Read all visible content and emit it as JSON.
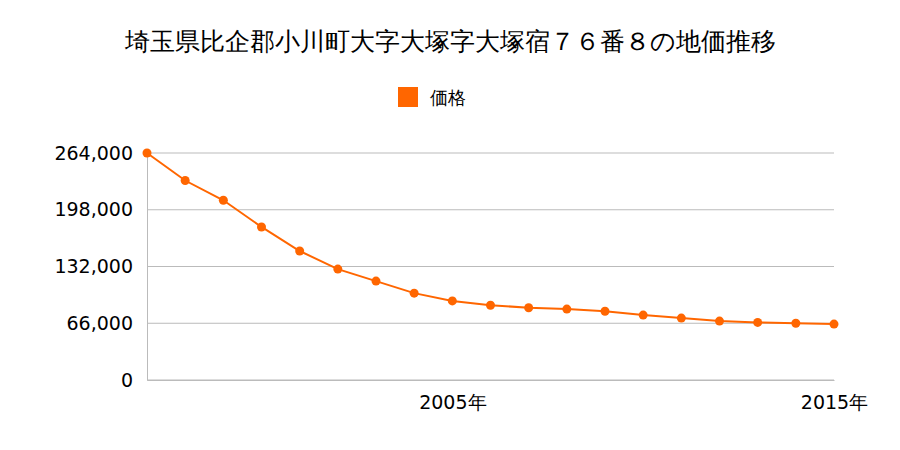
{
  "chart_data": {
    "type": "line",
    "title": "埼玉県比企郡小川町大字大塚字大塚宿７６番８の地価推移",
    "x": [
      1997,
      1998,
      1999,
      2000,
      2001,
      2002,
      2003,
      2004,
      2005,
      2006,
      2007,
      2008,
      2009,
      2010,
      2011,
      2012,
      2013,
      2014,
      2015
    ],
    "series": [
      {
        "name": "価格",
        "color": "#ff6600",
        "values": [
          264000,
          232000,
          209000,
          178000,
          150000,
          129000,
          115000,
          101000,
          92000,
          87000,
          84000,
          82500,
          80000,
          75500,
          72000,
          68500,
          67000,
          66000,
          65000
        ]
      }
    ],
    "xlim": [
      1997,
      2015
    ],
    "xticks": [
      {
        "value": 2005,
        "label": "2005年"
      },
      {
        "value": 2015,
        "label": "2015年"
      }
    ],
    "ylim": [
      0,
      264000
    ],
    "yticks": [
      0,
      {
        "value": 66000,
        "label": "66,000"
      },
      {
        "value": 132000,
        "label": "132,000"
      },
      {
        "value": 198000,
        "label": "198,000"
      },
      {
        "value": 264000,
        "label": "264,000"
      }
    ],
    "grid": true,
    "legend": "top",
    "marker": "circle"
  }
}
